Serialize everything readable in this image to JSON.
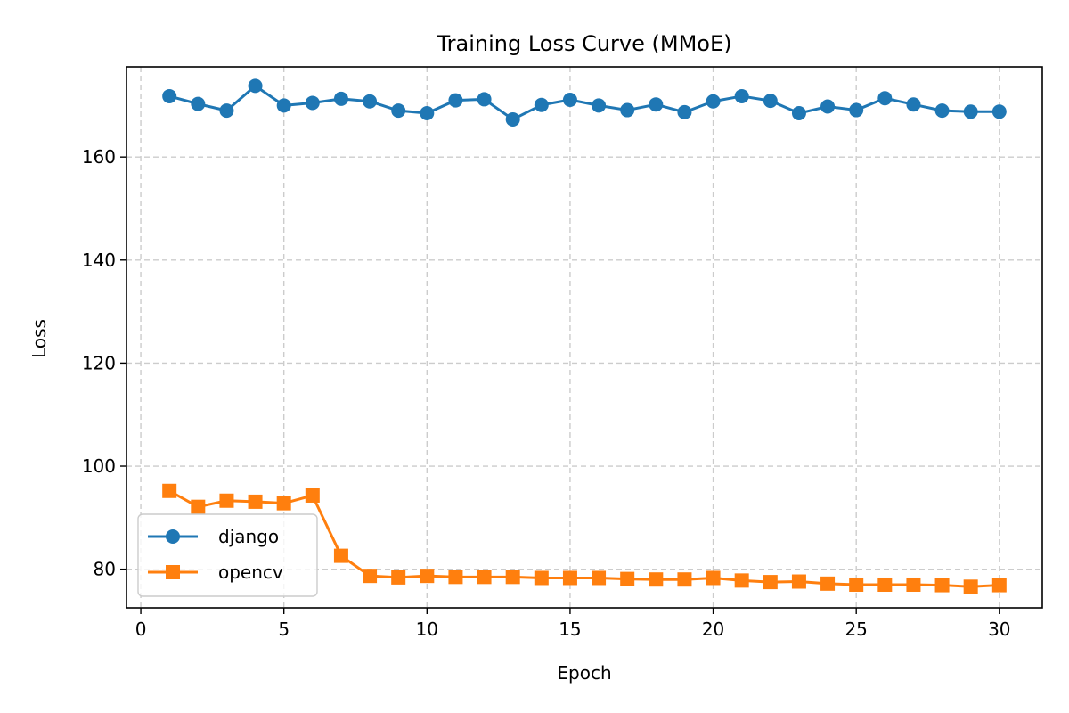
{
  "chart_data": {
    "type": "line",
    "title": "Training Loss Curve (MMoE)",
    "xlabel": "Epoch",
    "ylabel": "Loss",
    "xlim": [
      -0.5,
      31.5
    ],
    "ylim": [
      72.5,
      177.5
    ],
    "xticks": [
      0,
      5,
      10,
      15,
      20,
      25,
      30
    ],
    "yticks": [
      80,
      100,
      120,
      140,
      160
    ],
    "grid": true,
    "legend_position": "lower-left",
    "x": [
      1,
      2,
      3,
      4,
      5,
      6,
      7,
      8,
      9,
      10,
      11,
      12,
      13,
      14,
      15,
      16,
      17,
      18,
      19,
      20,
      21,
      22,
      23,
      24,
      25,
      26,
      27,
      28,
      29,
      30
    ],
    "series": [
      {
        "name": "django",
        "color": "#1f77b4",
        "marker": "circle",
        "values": [
          171.8,
          170.3,
          169.0,
          173.8,
          170.0,
          170.5,
          171.3,
          170.8,
          169.0,
          168.5,
          171.0,
          171.2,
          167.3,
          170.1,
          171.1,
          170.0,
          169.1,
          170.2,
          168.7,
          170.8,
          171.8,
          170.9,
          168.5,
          169.8,
          169.1,
          171.4,
          170.2,
          169.0,
          168.8,
          168.8
        ]
      },
      {
        "name": "opencv",
        "color": "#ff7f0e",
        "marker": "square",
        "values": [
          95.2,
          92.1,
          93.3,
          93.1,
          92.8,
          94.3,
          82.6,
          78.7,
          78.4,
          78.7,
          78.5,
          78.5,
          78.5,
          78.3,
          78.3,
          78.3,
          78.1,
          78.0,
          78.0,
          78.3,
          77.8,
          77.5,
          77.6,
          77.2,
          77.0,
          77.0,
          77.0,
          76.9,
          76.6,
          76.9
        ]
      }
    ]
  }
}
